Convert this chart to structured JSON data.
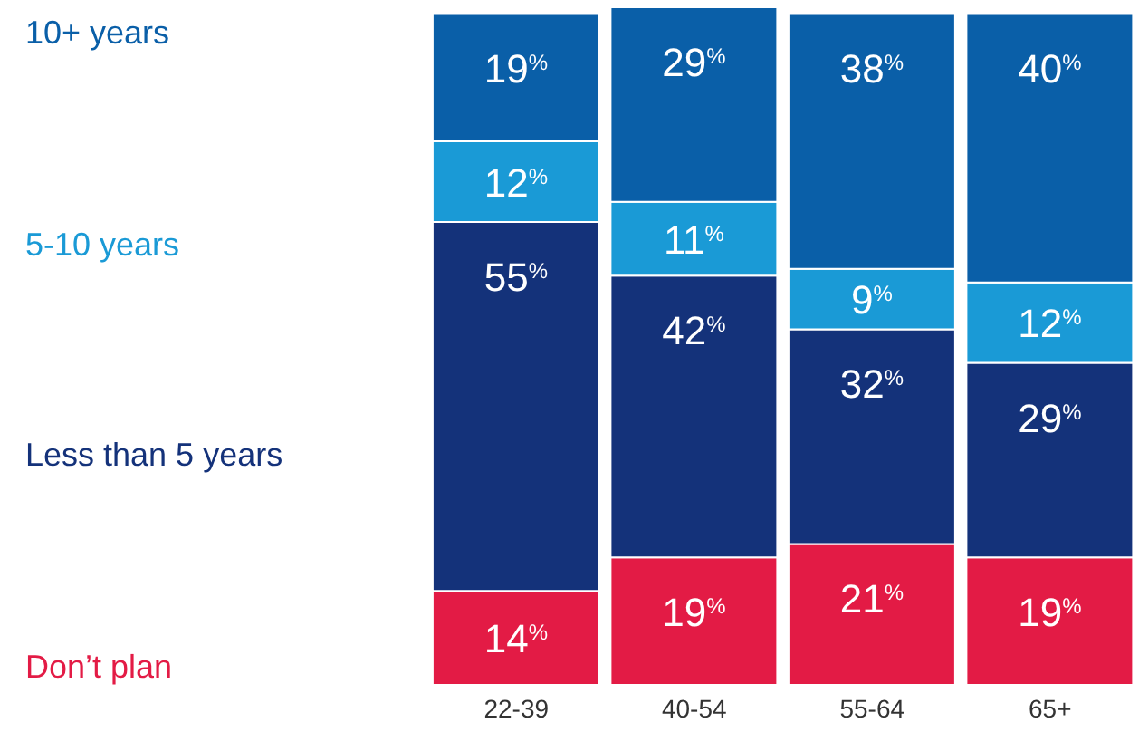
{
  "chart_data": {
    "type": "bar",
    "stacked": true,
    "categories": [
      "22-39",
      "40-54",
      "55-64",
      "65+"
    ],
    "legend": "left",
    "series": [
      {
        "name": "Don’t plan",
        "color": "#e31b45",
        "values": [
          14,
          19,
          21,
          19
        ],
        "value_labels": [
          "14$^{%}$",
          "19$^{%}$",
          "21$^{%}$",
          "19$^{%}$"
        ]
      },
      {
        "name": "Less than 5 years",
        "color": "#14327a",
        "values": [
          55,
          42,
          32,
          29
        ],
        "value_labels": [
          "55$^{%}$",
          "42$^{%}$",
          "32$^{%}$",
          "29$^{%}$"
        ]
      },
      {
        "name": "5-10 years",
        "color": "#1a9ad6",
        "values": [
          12,
          11,
          9,
          12
        ],
        "value_labels": [
          "12$^{%}$",
          "11$^{%}$",
          "9$^{%}$",
          "12$^{%}$"
        ]
      },
      {
        "name": "10+ years",
        "color": "#0a5fa8",
        "values": [
          19,
          29,
          38,
          40
        ],
        "value_labels": [
          "19$^{%}$",
          "29$^{%}$",
          "38$^{%}$",
          "40$^{%}$"
        ]
      }
    ]
  }
}
